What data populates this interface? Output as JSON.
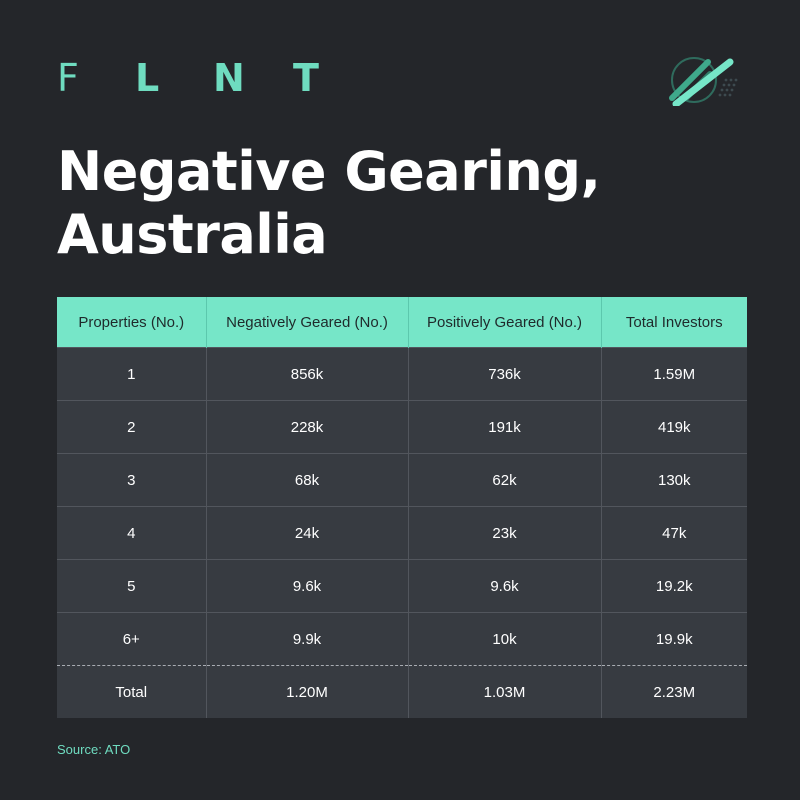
{
  "brand": {
    "letters": [
      "F",
      "L",
      "N",
      "T"
    ]
  },
  "title": {
    "line1": "Negative Gearing,",
    "line2": "Australia"
  },
  "table": {
    "headers": [
      "Properties (No.)",
      "Negatively Geared (No.)",
      "Positively Geared (No.)",
      "Total Investors"
    ],
    "rows": [
      [
        "1",
        "856k",
        "736k",
        "1.59M"
      ],
      [
        "2",
        "228k",
        "191k",
        "419k"
      ],
      [
        "3",
        "68k",
        "62k",
        "130k"
      ],
      [
        "4",
        "24k",
        "23k",
        "47k"
      ],
      [
        "5",
        "9.6k",
        "9.6k",
        "19.2k"
      ],
      [
        "6+",
        "9.9k",
        "10k",
        "19.9k"
      ]
    ],
    "total": [
      "Total",
      "1.20M",
      "1.03M",
      "2.23M"
    ]
  },
  "source": "Source: ATO",
  "colors": {
    "background": "#24262a",
    "accent": "#76e6c8",
    "row": "#373b41"
  },
  "icons": {
    "logo": "diagonal-bars-circle-logo-icon"
  }
}
